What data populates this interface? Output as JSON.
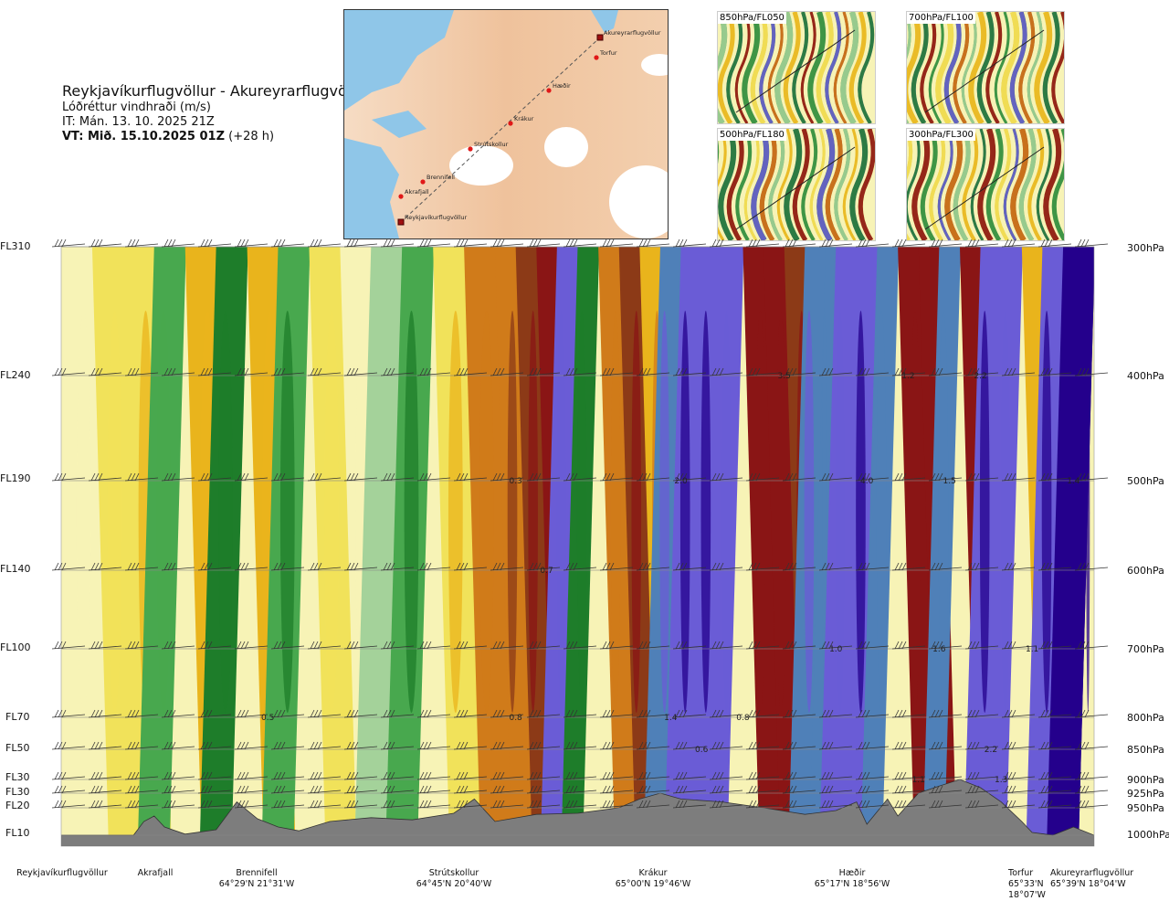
{
  "header": {
    "route": "Reykjavíkurflugvöllur - Akureyrarflugvöllur",
    "variable": "Lóðréttur vindhraði (m/s)",
    "issue": "IT: Mán. 13. 10. 2025 21Z",
    "valid_prefix": "VT: Mið. 15.10.2025 01Z",
    "valid_suffix": " (+28 h)"
  },
  "map": {
    "places": [
      "Akureyrarflugvöllur",
      "Torfur",
      "Hæðir",
      "Krákur",
      "Strútskollur",
      "Brennifell",
      "Akrafjall",
      "Reykjavíkurflugvöllur"
    ]
  },
  "thumbnails": [
    "850hPa/FL050",
    "700hPa/FL100",
    "500hPa/FL180",
    "300hPa/FL300"
  ],
  "flight_levels": [
    "FL310",
    "FL240",
    "FL190",
    "FL140",
    "FL100",
    "FL70",
    "FL50",
    "FL30",
    "FL30",
    "FL20",
    "FL10"
  ],
  "pressure_levels": [
    "300hPa",
    "400hPa",
    "500hPa",
    "600hPa",
    "700hPa",
    "800hPa",
    "850hPa",
    "900hPa",
    "925hPa",
    "950hPa",
    "1000hPa"
  ],
  "waypoints": [
    {
      "name": "Reykjavíkurflugvöllur",
      "coord": ""
    },
    {
      "name": "Akrafjall",
      "coord": ""
    },
    {
      "name": "Brennifell",
      "coord": "64°29'N 21°31'W"
    },
    {
      "name": "Strútskollur",
      "coord": "64°45'N 20°40'W"
    },
    {
      "name": "Krákur",
      "coord": "65°00'N 19°46'W"
    },
    {
      "name": "Hæðir",
      "coord": "65°17'N 18°56'W"
    },
    {
      "name": "Torfur",
      "coord": "65°33'N 18°07'W"
    },
    {
      "name": "Akureyrarflugvöllur",
      "coord": "65°39'N 18°04'W"
    }
  ],
  "chart_data": {
    "type": "heatmap",
    "title": "Lóðréttur vindhraði (m/s)",
    "x_categories": [
      "Reykjavíkurflugvöllur",
      "Akrafjall",
      "Brennifell",
      "Strútskollur",
      "Krákur",
      "Hæðir",
      "Torfur",
      "Akureyrarflugvöllur"
    ],
    "y_levels_hPa": [
      300,
      400,
      500,
      600,
      700,
      800,
      850,
      900,
      925,
      950,
      1000
    ],
    "palette": [
      "#24008c",
      "#6a5cd6",
      "#4f80b8",
      "#1e7d2a",
      "#48a84e",
      "#a4d29a",
      "#d6ebcf",
      "#f7f3b6",
      "#f1e25a",
      "#e9b41c",
      "#d07b1a",
      "#8c3a17",
      "#8a1515"
    ],
    "columns": [
      {
        "x": 0.0,
        "v": 0.1
      },
      {
        "x": 0.03,
        "v": 0.2
      },
      {
        "x": 0.06,
        "v": 0.4
      },
      {
        "x": 0.09,
        "v": -0.3
      },
      {
        "x": 0.12,
        "v": 0.6
      },
      {
        "x": 0.15,
        "v": -0.5
      },
      {
        "x": 0.18,
        "v": 0.5
      },
      {
        "x": 0.21,
        "v": -0.4
      },
      {
        "x": 0.24,
        "v": 0.3
      },
      {
        "x": 0.27,
        "v": 0.1
      },
      {
        "x": 0.3,
        "v": -0.2
      },
      {
        "x": 0.33,
        "v": -0.4
      },
      {
        "x": 0.36,
        "v": 0.4
      },
      {
        "x": 0.39,
        "v": 0.8
      },
      {
        "x": 0.42,
        "v": 1.2
      },
      {
        "x": 0.44,
        "v": 1.6
      },
      {
        "x": 0.46,
        "v": 2.2
      },
      {
        "x": 0.48,
        "v": -1.6
      },
      {
        "x": 0.5,
        "v": -0.6
      },
      {
        "x": 0.52,
        "v": 1.0
      },
      {
        "x": 0.54,
        "v": 1.8
      },
      {
        "x": 0.56,
        "v": 0.7
      },
      {
        "x": 0.58,
        "v": -1.2
      },
      {
        "x": 0.6,
        "v": -1.8
      },
      {
        "x": 0.62,
        "v": -2.0
      },
      {
        "x": 0.64,
        "v": -1.5
      },
      {
        "x": 0.66,
        "v": 2.3
      },
      {
        "x": 0.68,
        "v": 2.6
      },
      {
        "x": 0.7,
        "v": 1.8
      },
      {
        "x": 0.72,
        "v": -1.2
      },
      {
        "x": 0.74,
        "v": -0.8
      },
      {
        "x": 0.75,
        "v": -1.6
      },
      {
        "x": 0.77,
        "v": -2.0
      },
      {
        "x": 0.79,
        "v": -1.0
      },
      {
        "x": 0.81,
        "v": 2.4
      },
      {
        "x": 0.83,
        "v": 2.1
      },
      {
        "x": 0.85,
        "v": -0.9
      },
      {
        "x": 0.87,
        "v": 2.5
      },
      {
        "x": 0.89,
        "v": -1.8
      },
      {
        "x": 0.91,
        "v": -1.4
      },
      {
        "x": 0.93,
        "v": 0.6
      },
      {
        "x": 0.95,
        "v": -2.0
      },
      {
        "x": 0.97,
        "v": -2.6
      },
      {
        "x": 1.0,
        "v": -2.2
      }
    ],
    "annotations": [
      {
        "x": 0.2,
        "p": 800,
        "label": "0.5"
      },
      {
        "x": 0.44,
        "p": 800,
        "label": "0.8"
      },
      {
        "x": 0.44,
        "p": 500,
        "label": "0.3"
      },
      {
        "x": 0.47,
        "p": 600,
        "label": "0.7"
      },
      {
        "x": 0.59,
        "p": 800,
        "label": "1.4"
      },
      {
        "x": 0.62,
        "p": 850,
        "label": "0.6"
      },
      {
        "x": 0.66,
        "p": 800,
        "label": "0.8"
      },
      {
        "x": 0.6,
        "p": 500,
        "label": "2.0"
      },
      {
        "x": 0.7,
        "p": 400,
        "label": "3.5"
      },
      {
        "x": 0.78,
        "p": 500,
        "label": "4.0"
      },
      {
        "x": 0.82,
        "p": 400,
        "label": "1.2"
      },
      {
        "x": 0.86,
        "p": 500,
        "label": "1.5"
      },
      {
        "x": 0.89,
        "p": 400,
        "label": "2.2"
      },
      {
        "x": 0.75,
        "p": 700,
        "label": "1.0"
      },
      {
        "x": 0.85,
        "p": 700,
        "label": "1.6"
      },
      {
        "x": 0.83,
        "p": 900,
        "label": "1.1"
      },
      {
        "x": 0.91,
        "p": 900,
        "label": "1.3"
      },
      {
        "x": 0.94,
        "p": 700,
        "label": "1.1"
      },
      {
        "x": 0.98,
        "p": 500,
        "label": "1.4"
      },
      {
        "x": 0.9,
        "p": 850,
        "label": "2.2"
      }
    ],
    "terrain_hPa": [
      {
        "x": 0.0,
        "p": 1000
      },
      {
        "x": 0.07,
        "p": 1000
      },
      {
        "x": 0.08,
        "p": 975
      },
      {
        "x": 0.09,
        "p": 965
      },
      {
        "x": 0.1,
        "p": 985
      },
      {
        "x": 0.12,
        "p": 998
      },
      {
        "x": 0.15,
        "p": 990
      },
      {
        "x": 0.17,
        "p": 940
      },
      {
        "x": 0.19,
        "p": 970
      },
      {
        "x": 0.21,
        "p": 985
      },
      {
        "x": 0.23,
        "p": 992
      },
      {
        "x": 0.26,
        "p": 975
      },
      {
        "x": 0.3,
        "p": 968
      },
      {
        "x": 0.34,
        "p": 972
      },
      {
        "x": 0.38,
        "p": 960
      },
      {
        "x": 0.4,
        "p": 935
      },
      {
        "x": 0.42,
        "p": 975
      },
      {
        "x": 0.46,
        "p": 962
      },
      {
        "x": 0.5,
        "p": 960
      },
      {
        "x": 0.54,
        "p": 950
      },
      {
        "x": 0.56,
        "p": 935
      },
      {
        "x": 0.58,
        "p": 925
      },
      {
        "x": 0.6,
        "p": 935
      },
      {
        "x": 0.64,
        "p": 940
      },
      {
        "x": 0.68,
        "p": 950
      },
      {
        "x": 0.72,
        "p": 962
      },
      {
        "x": 0.75,
        "p": 955
      },
      {
        "x": 0.77,
        "p": 940
      },
      {
        "x": 0.78,
        "p": 980
      },
      {
        "x": 0.8,
        "p": 935
      },
      {
        "x": 0.81,
        "p": 965
      },
      {
        "x": 0.83,
        "p": 925
      },
      {
        "x": 0.85,
        "p": 912
      },
      {
        "x": 0.87,
        "p": 900
      },
      {
        "x": 0.89,
        "p": 915
      },
      {
        "x": 0.91,
        "p": 940
      },
      {
        "x": 0.93,
        "p": 975
      },
      {
        "x": 0.94,
        "p": 995
      },
      {
        "x": 0.96,
        "p": 1000
      },
      {
        "x": 0.98,
        "p": 985
      },
      {
        "x": 1.0,
        "p": 1000
      }
    ]
  }
}
